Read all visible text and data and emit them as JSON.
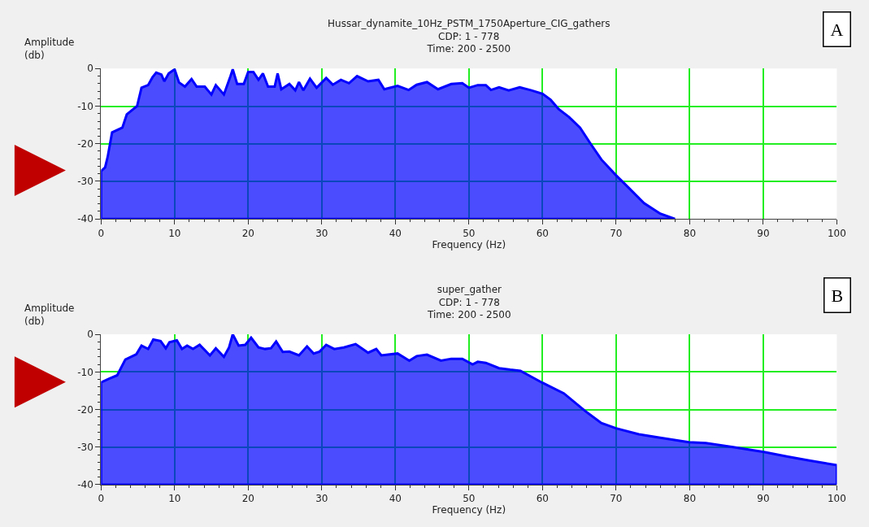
{
  "chart_data": [
    {
      "type": "area",
      "title": "Hussar_dynamite_10Hz_PSTM_1750Aperture_CIG_gathers",
      "subtitle": "CDP: 1 - 778\nTime: 200 - 2500",
      "xlabel": "Frequency (Hz)",
      "ylabel": "Amplitude\n(db)",
      "annotations": [
        "A"
      ],
      "x": [
        0,
        0,
        0.55,
        0.9,
        1.5,
        2.9,
        3.5,
        4.9,
        5.5,
        6.4,
        7,
        7.5,
        8.2,
        8.6,
        9.2,
        10,
        10.6,
        11.4,
        12.3,
        13,
        14.1,
        15,
        15.6,
        16.7,
        17.6,
        17.9,
        18.5,
        19.4,
        20,
        20.7,
        21.4,
        22,
        22.7,
        23.6,
        24,
        24.5,
        25.6,
        26.4,
        26.9,
        27.5,
        28.4,
        29.3,
        30.6,
        31.5,
        32.6,
        33.7,
        34.8,
        36.3,
        37.7,
        38.5,
        40.3,
        41.8,
        42.9,
        44.3,
        45.8,
        47.6,
        49.1,
        50,
        51.2,
        52.3,
        53,
        54.1,
        55.4,
        56.9,
        58.5,
        60,
        61.1,
        62.2,
        63.6,
        65.1,
        66.5,
        68,
        70,
        71.6,
        73.8,
        76,
        78
      ],
      "series": [
        {
          "color": "#0000ff",
          "values": [
            -40,
            -27.3,
            -26.3,
            -23.5,
            -17,
            -15.7,
            -12.2,
            -10,
            -5.1,
            -4.4,
            -2.3,
            -1.1,
            -1.6,
            -3.4,
            -1.3,
            -0.2,
            -3.7,
            -4.8,
            -2.8,
            -4.8,
            -4.8,
            -6.9,
            -4.4,
            -6.9,
            -2,
            -0.2,
            -4.1,
            -4.1,
            -0.9,
            -0.9,
            -3,
            -1.3,
            -4.8,
            -4.8,
            -1.3,
            -5.5,
            -4.1,
            -5.8,
            -3.6,
            -5.8,
            -2.7,
            -5.1,
            -2.5,
            -4.3,
            -3,
            -3.9,
            -2,
            -3.4,
            -3,
            -5.5,
            -4.6,
            -5.7,
            -4.3,
            -3.6,
            -5.5,
            -4.1,
            -3.9,
            -5.1,
            -4.4,
            -4.4,
            -5.7,
            -5,
            -5.8,
            -5,
            -5.8,
            -6.7,
            -8.3,
            -10.8,
            -12.9,
            -15.7,
            -19.9,
            -24.2,
            -28.4,
            -31.5,
            -35.8,
            -38.6,
            -40
          ]
        }
      ],
      "xlim": [
        0,
        100
      ],
      "ylim": [
        -40,
        0
      ],
      "xticks": [
        0,
        10,
        20,
        30,
        40,
        50,
        60,
        70,
        80,
        90,
        100
      ],
      "yticks": [
        -40,
        -30,
        -20,
        -10,
        0
      ],
      "grid": true
    },
    {
      "type": "area",
      "title": "super_gather",
      "subtitle": "CDP: 1 - 778\nTime: 200 - 2500",
      "xlabel": "Frequency (Hz)",
      "ylabel": "Amplitude\n(db)",
      "annotations": [
        "B"
      ],
      "x": [
        0,
        0,
        1.1,
        2.2,
        3.3,
        4.8,
        5.5,
        6.4,
        7.1,
        8.1,
        8.8,
        9.3,
        10.3,
        11,
        11.7,
        12.5,
        13.4,
        14.8,
        15.6,
        16.7,
        17.4,
        17.9,
        18.7,
        19.6,
        20.4,
        21.4,
        22.3,
        23.1,
        23.8,
        24.7,
        25.6,
        26.9,
        28,
        28.9,
        29.7,
        30.6,
        31.7,
        33,
        34.6,
        36.3,
        37.4,
        38.1,
        40.3,
        41.9,
        42.9,
        44.3,
        46.2,
        47.6,
        49.1,
        50.5,
        51.2,
        52.3,
        54.1,
        55.6,
        57,
        60,
        62.9,
        65.8,
        68,
        70,
        73.1,
        76,
        79.9,
        82.2,
        85.9,
        90.1,
        93.2,
        96.1,
        100,
        100
      ],
      "series": [
        {
          "color": "#0000ff",
          "values": [
            -40,
            -12.8,
            -11.8,
            -10.9,
            -6.7,
            -5.3,
            -3,
            -3.9,
            -1.4,
            -1.8,
            -3.7,
            -2.1,
            -1.6,
            -3.9,
            -3,
            -3.9,
            -2.8,
            -5.6,
            -3.7,
            -6,
            -3.5,
            0,
            -3,
            -2.8,
            -0.9,
            -3.5,
            -3.9,
            -3.7,
            -1.9,
            -4.7,
            -4.6,
            -5.6,
            -3.2,
            -5.1,
            -4.6,
            -2.8,
            -3.9,
            -3.5,
            -2.6,
            -4.9,
            -3.9,
            -5.6,
            -5.1,
            -7,
            -5.8,
            -5.4,
            -7,
            -6.5,
            -6.5,
            -8,
            -7.3,
            -7.6,
            -9,
            -9.4,
            -9.7,
            -12.9,
            -15.7,
            -20.4,
            -23.6,
            -25,
            -26.6,
            -27.5,
            -28.7,
            -28.9,
            -30,
            -31.3,
            -32.5,
            -33.5,
            -34.8,
            -40
          ]
        }
      ],
      "xlim": [
        0,
        100
      ],
      "ylim": [
        -40,
        0
      ],
      "xticks": [
        0,
        10,
        20,
        30,
        40,
        50,
        60,
        70,
        80,
        90,
        100
      ],
      "yticks": [
        -40,
        -30,
        -20,
        -10,
        0
      ],
      "grid": true
    }
  ]
}
